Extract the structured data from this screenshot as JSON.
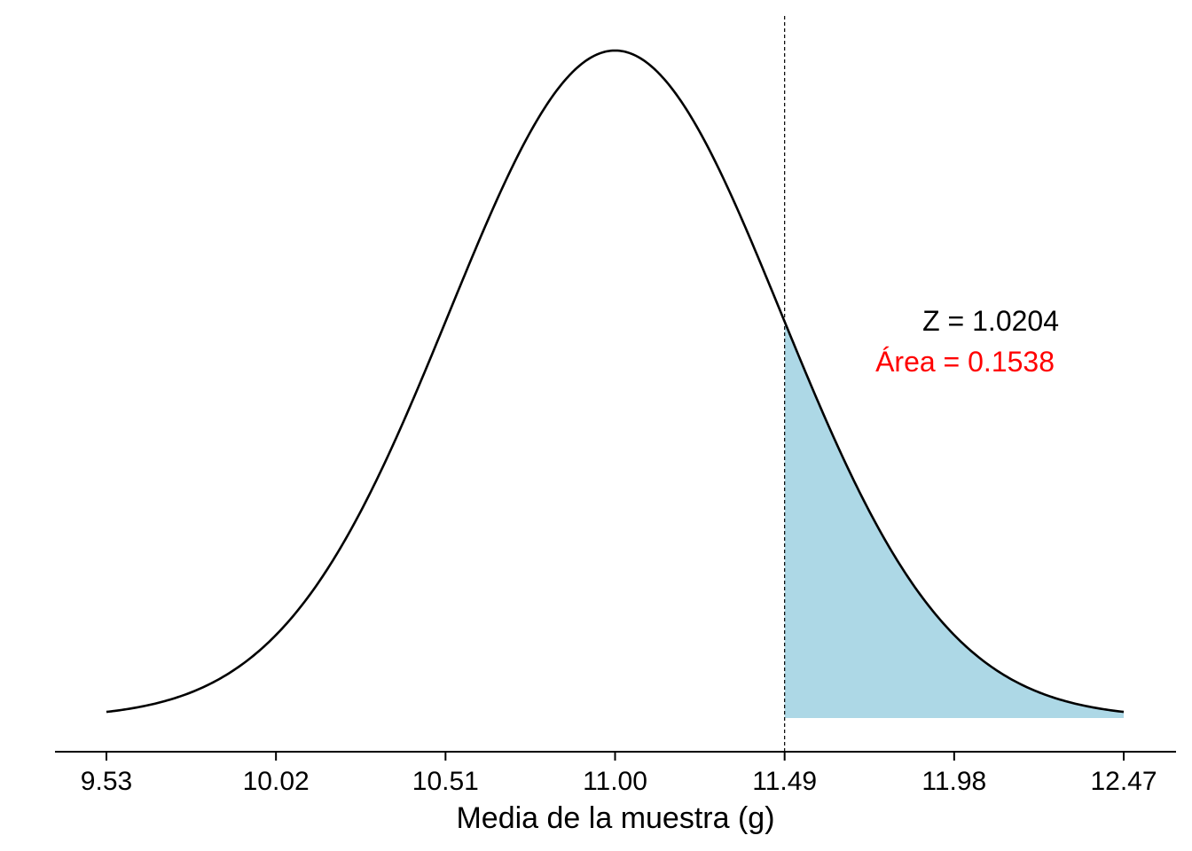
{
  "chart_data": {
    "type": "area",
    "distribution": "normal",
    "mean": 11.0,
    "sd": 0.48,
    "x_range": [
      9.53,
      12.47
    ],
    "shaded_from": 11.49,
    "shaded_to": 12.47,
    "shaded_side": "right",
    "cutoff": 11.49,
    "xticks": [
      "9.53",
      "10.02",
      "10.51",
      "11.00",
      "11.49",
      "11.98",
      "12.47"
    ],
    "xlabel": "Media de la muestra (g)",
    "ylabel": "",
    "title": "",
    "grid": false,
    "annotations": {
      "z_text": "Z = 1.0204",
      "area_text": "Área = 0.1538"
    },
    "colors": {
      "curve": "#000000",
      "shade": "#add8e6",
      "area_text": "#ff0000",
      "z_text": "#000000",
      "cutoff_line": "#000000"
    }
  }
}
